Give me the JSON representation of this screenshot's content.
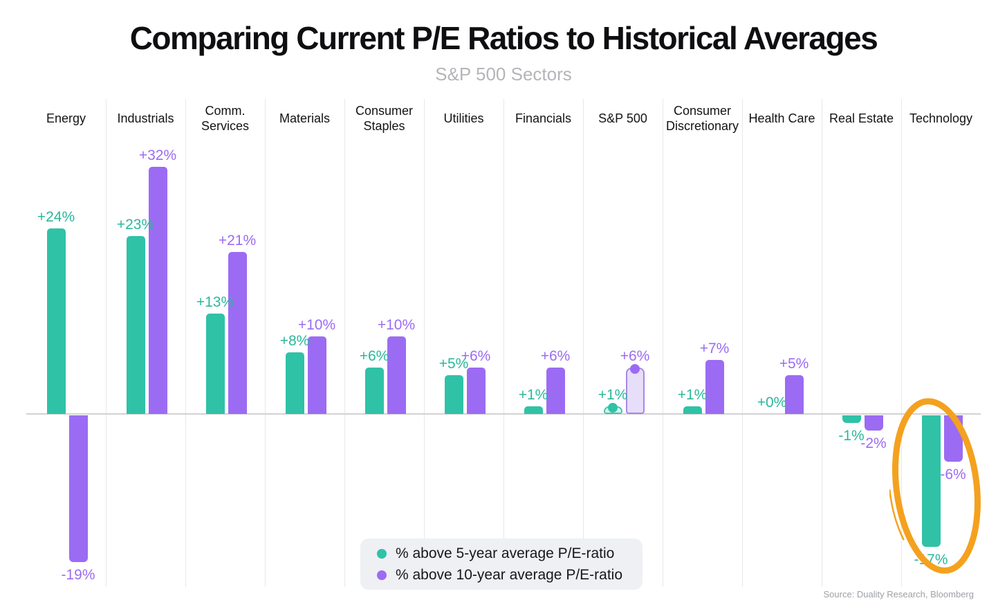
{
  "title": "Comparing Current P/E Ratios to Historical Averages",
  "subtitle": "S&P 500 Sectors",
  "source": "Source: Duality Research, Bloomberg",
  "legend": {
    "items": [
      {
        "label": "% above 5-year average P/E-ratio"
      },
      {
        "label": "% above 10-year average P/E-ratio"
      }
    ]
  },
  "colors": {
    "teal": "#2fc2a7",
    "teal_label": "#2bb79d",
    "purple": "#9c6bf3",
    "teal_light_fill": "#d8f3ed",
    "teal_light_border": "#49c4ac",
    "purple_light_fill": "#e7def9",
    "purple_light_border": "#a886e8",
    "annotation_orange": "#f4a11f",
    "axis_line": "#d2d2d4",
    "column_divider": "#e8e8ea",
    "legend_background": "#eef0f4"
  },
  "chart_data": {
    "type": "bar",
    "title": "Comparing Current P/E Ratios to Historical Averages",
    "subtitle": "S&P 500 Sectors",
    "categories": [
      "Energy",
      "Industrials",
      "Comm. Services",
      "Materials",
      "Consumer Staples",
      "Utilities",
      "Financials",
      "S&P 500",
      "Consumer Discretionary",
      "Health Care",
      "Real Estate",
      "Technology"
    ],
    "series": [
      {
        "name": "% above 5-year average P/E-ratio",
        "color": "#2fc2a7",
        "label_color": "#2bb79d",
        "values": [
          24,
          23,
          13,
          8,
          6,
          5,
          1,
          1,
          1,
          0,
          -1,
          -17
        ]
      },
      {
        "name": "% above 10-year average P/E-ratio",
        "color": "#9c6bf3",
        "label_color": "#9c6bf3",
        "values": [
          -19,
          32,
          21,
          10,
          10,
          6,
          6,
          6,
          7,
          5,
          -2,
          -6
        ]
      }
    ],
    "value_label_format": "signed percent, e.g. +24% / -19%",
    "ylim": [
      -20,
      34
    ],
    "grid": "vertical column dividers only, no y-axis ticks",
    "legend_position": "bottom-center",
    "highlighted_category": "S&P 500",
    "highlight_style": "light fill, solid outline, dot marker at bar top",
    "circled_category": "Technology",
    "circle_annotation_color": "#f4a11f"
  }
}
